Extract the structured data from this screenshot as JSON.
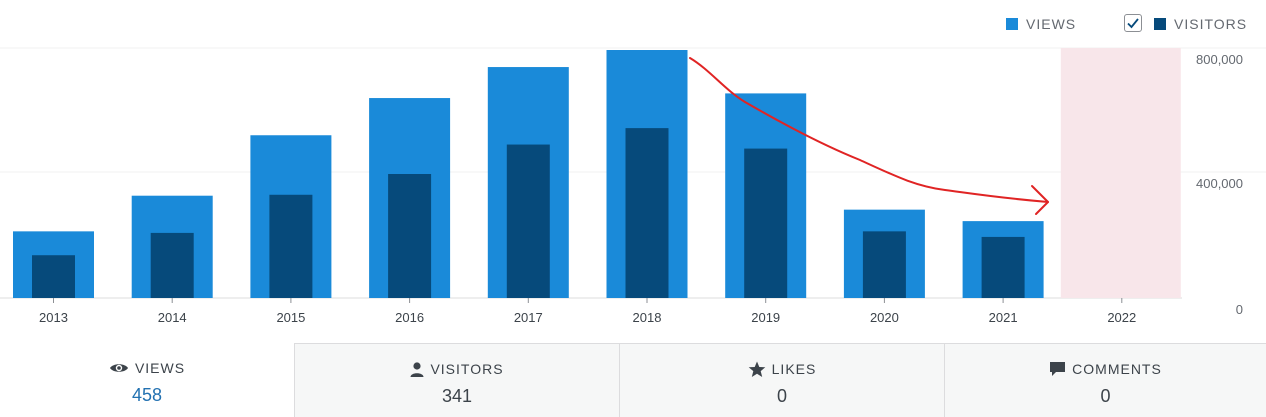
{
  "legend": {
    "views_label": "VIEWS",
    "visitors_label": "VISITORS"
  },
  "chart_data": {
    "type": "bar",
    "categories": [
      "2013",
      "2014",
      "2015",
      "2016",
      "2017",
      "2018",
      "2019",
      "2020",
      "2021",
      "2022"
    ],
    "series": [
      {
        "name": "VIEWS",
        "values": [
          215000,
          330000,
          525000,
          645000,
          745000,
          800000,
          660000,
          285000,
          248000,
          0
        ],
        "color": "#1a8ad9"
      },
      {
        "name": "VISITORS",
        "values": [
          138000,
          210000,
          333000,
          400000,
          495000,
          548000,
          482000,
          215000,
          197000,
          0
        ],
        "color": "#064a7b"
      }
    ],
    "yticks": [
      "0",
      "400,000",
      "800,000"
    ],
    "ytick_values": [
      0,
      400000,
      800000
    ],
    "ylim": [
      0,
      800000
    ],
    "highlighted_category": "2022",
    "highlight_color": "#f8e6ea",
    "annotation": "red hand-drawn arrow descending from 2018 toward 2022",
    "annotation_color": "#e02424",
    "grid": true,
    "legend_position": "top-right"
  },
  "tabs": [
    {
      "label": "VIEWS",
      "value": "458",
      "icon": "eye-icon",
      "active": true
    },
    {
      "label": "VISITORS",
      "value": "341",
      "icon": "person-icon",
      "active": false
    },
    {
      "label": "LIKES",
      "value": "0",
      "icon": "star-icon",
      "active": false
    },
    {
      "label": "COMMENTS",
      "value": "0",
      "icon": "comment-icon",
      "active": false
    }
  ]
}
